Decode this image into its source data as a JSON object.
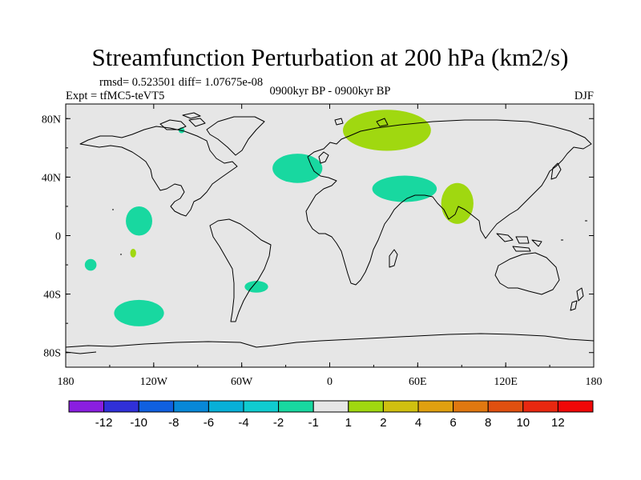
{
  "chart_data": {
    "type": "contour-map",
    "title": "Streamfunction Perturbation at 200 hPa (km2/s)",
    "stats_text": "rmsd= 0.523501 diff= 1.07675e-08",
    "experiment": "Expt = tfMC5-teVT5",
    "period": "0900kyr BP - 0900kyr BP",
    "season": "DJF",
    "x_ticks": [
      {
        "value": -180,
        "label": "180"
      },
      {
        "value": -120,
        "label": "120W"
      },
      {
        "value": -60,
        "label": "60W"
      },
      {
        "value": 0,
        "label": "0"
      },
      {
        "value": 60,
        "label": "60E"
      },
      {
        "value": 120,
        "label": "120E"
      },
      {
        "value": 180,
        "label": "180"
      }
    ],
    "y_ticks": [
      {
        "value": 80,
        "label": "80N"
      },
      {
        "value": 40,
        "label": "40N"
      },
      {
        "value": 0,
        "label": "0"
      },
      {
        "value": -40,
        "label": "40S"
      },
      {
        "value": -80,
        "label": "80S"
      }
    ],
    "xlim": [
      -180,
      180
    ],
    "ylim": [
      -90,
      90
    ],
    "colorbar": {
      "levels": [
        -12,
        -10,
        -8,
        -6,
        -4,
        -2,
        -1,
        1,
        2,
        4,
        6,
        8,
        10,
        12
      ],
      "labels": [
        "-12",
        "-10",
        "-8",
        "-6",
        "-4",
        "-2",
        "-1",
        "1",
        "2",
        "4",
        "6",
        "8",
        "10",
        "12"
      ],
      "colors": [
        "#8a1ee0",
        "#3030d8",
        "#1060e0",
        "#0888d8",
        "#08b0d8",
        "#10ccd0",
        "#18d8a0",
        "#e6e6e6",
        "#a0d810",
        "#d0c010",
        "#e0a010",
        "#e07810",
        "#e05010",
        "#e82810",
        "#f00808"
      ]
    },
    "anomalies": [
      {
        "lon": 39,
        "lat": 72,
        "rlon": 30,
        "rlat": 14,
        "level": "1 to 2",
        "color": "#a0d810"
      },
      {
        "lon": 87,
        "lat": 22,
        "rlon": 11,
        "rlat": 14,
        "level": "1 to 2",
        "color": "#a0d810"
      },
      {
        "lon": -134,
        "lat": -12,
        "rlon": 2,
        "rlat": 3,
        "level": "1 to 2",
        "color": "#a0d810"
      },
      {
        "lon": -22,
        "lat": 46,
        "rlon": 17,
        "rlat": 10,
        "level": "-2 to -1",
        "color": "#18d8a0"
      },
      {
        "lon": 51,
        "lat": 32,
        "rlon": 22,
        "rlat": 9,
        "level": "-2 to -1",
        "color": "#18d8a0"
      },
      {
        "lon": -130,
        "lat": 10,
        "rlon": 9,
        "rlat": 10,
        "level": "-2 to -1",
        "color": "#18d8a0"
      },
      {
        "lon": -163,
        "lat": -20,
        "rlon": 4,
        "rlat": 4,
        "level": "-2 to -1",
        "color": "#18d8a0"
      },
      {
        "lon": -50,
        "lat": -35,
        "rlon": 8,
        "rlat": 4,
        "level": "-2 to -1",
        "color": "#18d8a0"
      },
      {
        "lon": -130,
        "lat": -53,
        "rlon": 17,
        "rlat": 9,
        "level": "-2 to -1",
        "color": "#18d8a0"
      },
      {
        "lon": -101,
        "lat": 72,
        "rlon": 2,
        "rlat": 2,
        "level": "-2 to -1",
        "color": "#18d8a0"
      }
    ],
    "background_color": "#e6e6e6"
  }
}
